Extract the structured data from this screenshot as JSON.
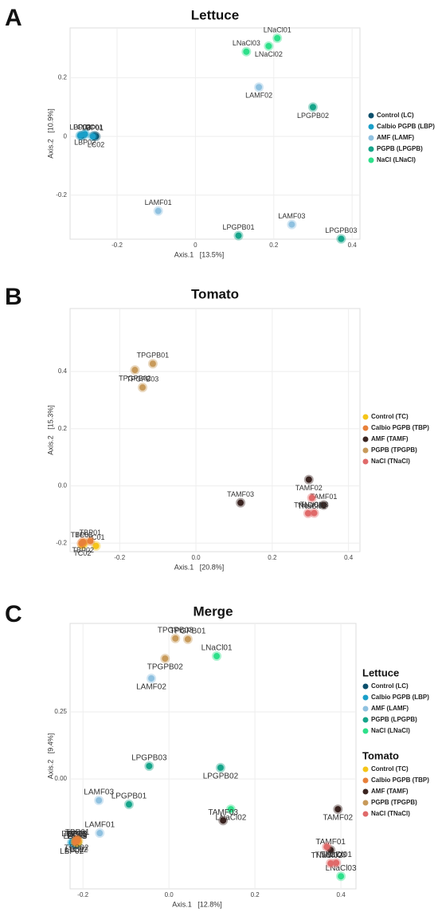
{
  "chart_data": [
    {
      "type": "scatter",
      "letter": "A",
      "title": "Lettuce",
      "xlabel": "Axis.1   [13.5%]",
      "ylabel": "Axis.2   [10.9%]",
      "xlim": [
        -0.32,
        0.42
      ],
      "ylim": [
        -0.35,
        0.37
      ],
      "xticks": [
        -0.2,
        0,
        0.2,
        0.4
      ],
      "yticks": [
        0.2,
        0,
        -0.2
      ],
      "grid": true,
      "series": [
        {
          "name": "Control (LC)",
          "color": "#0b4f6c",
          "labels": [
            "LC01",
            "LC02",
            "LC03"
          ],
          "x": [
            -0.258,
            -0.254,
            -0.29
          ],
          "values": [
            0.003,
            0,
            0.003
          ]
        },
        {
          "name": "Calbio PGPB (LBP)",
          "color": "#1a9fc9",
          "labels": [
            "LBP01",
            "LBP02",
            "LBP03"
          ],
          "x": [
            -0.262,
            -0.282,
            -0.294
          ],
          "values": [
            0,
            0.008,
            0.003
          ]
        },
        {
          "name": "AMF (LAMF)",
          "color": "#8fc1e0",
          "labels": [
            "LAMF01",
            "LAMF02",
            "LAMF03"
          ],
          "x": [
            -0.095,
            0.162,
            0.246
          ],
          "values": [
            -0.254,
            0.168,
            -0.3
          ]
        },
        {
          "name": "PGPB (LPGPB)",
          "color": "#16a58a",
          "labels": [
            "LPGPB01",
            "LPGPB02",
            "LPGPB03"
          ],
          "x": [
            0.11,
            0.3,
            0.372
          ],
          "values": [
            -0.338,
            0.1,
            -0.349
          ]
        },
        {
          "name": "NaCl (LNaCl)",
          "color": "#2ee08a",
          "labels": [
            "LNaCl01",
            "LNaCl02",
            "LNaCl03"
          ],
          "x": [
            0.209,
            0.187,
            0.13
          ],
          "values": [
            0.335,
            0.308,
            0.289
          ]
        }
      ]
    },
    {
      "type": "scatter",
      "letter": "B",
      "title": "Tomato",
      "xlabel": "Axis.1   [20.8%]",
      "ylabel": "Axis.2   [15.3%]",
      "xlim": [
        -0.33,
        0.43
      ],
      "ylim": [
        -0.23,
        0.62
      ],
      "xticks": [
        -0.2,
        {
          "value": 0,
          "label": "0.0"
        },
        0.2,
        0.4
      ],
      "yticks": [
        0.4,
        0.2,
        {
          "value": 0,
          "label": "0.0"
        },
        -0.2
      ],
      "grid": true,
      "series": [
        {
          "name": "Control (TC)",
          "color": "#f5c518",
          "labels": [
            "TC01",
            "TC02",
            "TC03"
          ],
          "x": [
            -0.262,
            -0.298,
            -0.294
          ],
          "values": [
            -0.21,
            -0.207,
            -0.201
          ]
        },
        {
          "name": "Calbio PGPB (TBP)",
          "color": "#e8803a",
          "labels": [
            "TBP01",
            "TBP02",
            "TBP03"
          ],
          "x": [
            -0.277,
            -0.296,
            -0.3
          ],
          "values": [
            -0.193,
            -0.196,
            -0.201
          ]
        },
        {
          "name": "AMF (TAMF)",
          "color": "#3a2420",
          "labels": [
            "TAMF01",
            "TAMF02",
            "TAMF03"
          ],
          "x": [
            0.335,
            0.296,
            0.117
          ],
          "values": [
            -0.067,
            0.022,
            -0.059
          ]
        },
        {
          "name": "PGPB (TPGPB)",
          "color": "#c89a5a",
          "labels": [
            "TPGPB01",
            "TPGPB02",
            "TPGPB03"
          ],
          "x": [
            -0.113,
            -0.16,
            -0.14
          ],
          "values": [
            0.427,
            0.405,
            0.344
          ]
        },
        {
          "name": "NaCl (TNaCl)",
          "color": "#e06a6a",
          "labels": [
            "TNaCl01",
            "TNaCl02",
            "TNaCl03"
          ],
          "x": [
            0.294,
            0.304,
            0.31
          ],
          "values": [
            -0.096,
            -0.042,
            -0.095
          ]
        }
      ]
    },
    {
      "type": "scatter",
      "letter": "C",
      "title": "Merge",
      "xlabel": "Axis.1   [12.8%]",
      "ylabel": "Axis.2   [9.4%]",
      "xlim": [
        -0.23,
        0.435
      ],
      "ylim": [
        -0.41,
        0.58
      ],
      "xticks": [
        -0.2,
        {
          "value": 0,
          "label": "0.0"
        },
        0.2,
        0.4
      ],
      "yticks": [
        0.25,
        {
          "value": 0,
          "label": "0.00"
        }
      ],
      "grid": true,
      "groups": [
        {
          "name": "Lettuce",
          "series": [
            {
              "name": "Control (LC)",
              "color": "#0b4f6c",
              "labels": [
                "LC01",
                "LC02",
                "LC03"
              ],
              "x": [
                -0.213,
                -0.22,
                -0.215
              ],
              "values": [
                -0.238,
                -0.232,
                -0.244
              ]
            },
            {
              "name": "Calbio PGPB (LBP)",
              "color": "#1a9fc9",
              "labels": [
                "LBP01",
                "LBP02",
                "LBP03"
              ],
              "x": [
                -0.222,
                -0.226,
                -0.218
              ],
              "values": [
                -0.235,
                -0.238,
                -0.244
              ]
            },
            {
              "name": "AMF (LAMF)",
              "color": "#8fc1e0",
              "labels": [
                "LAMF01",
                "LAMF02",
                "LAMF03"
              ],
              "x": [
                -0.161,
                -0.041,
                -0.163
              ],
              "values": [
                -0.202,
                0.375,
                -0.08
              ]
            },
            {
              "name": "PGPB (LPGPB)",
              "color": "#16a58a",
              "labels": [
                "LPGPB01",
                "LPGPB02",
                "LPGPB03"
              ],
              "x": [
                -0.093,
                0.12,
                -0.046
              ],
              "values": [
                -0.095,
                0.042,
                0.048
              ]
            },
            {
              "name": "NaCl (LNaCl)",
              "color": "#2ee08a",
              "labels": [
                "LNaCl01",
                "LNaCl02",
                "LNaCl03"
              ],
              "x": [
                0.111,
                0.144,
                0.4
              ],
              "values": [
                0.458,
                -0.113,
                -0.363
              ]
            }
          ]
        },
        {
          "name": "Tomato",
          "series": [
            {
              "name": "Control (TC)",
              "color": "#f5c518",
              "labels": [
                "TC01",
                "TC02",
                "TC03"
              ],
              "x": [
                -0.217,
                -0.211,
                -0.213
              ],
              "values": [
                -0.235,
                -0.232,
                -0.238
              ]
            },
            {
              "name": "Calbio PGPB (TBP)",
              "color": "#e8803a",
              "labels": [
                "TBP01",
                "TBP02",
                "TBP03"
              ],
              "x": [
                -0.213,
                -0.215,
                -0.218
              ],
              "values": [
                -0.229,
                -0.226,
                -0.235
              ]
            },
            {
              "name": "AMF (TAMF)",
              "color": "#3a2420",
              "labels": [
                "TAMF01",
                "TAMF02",
                "TAMF03"
              ],
              "x": [
                0.376,
                0.393,
                0.126
              ],
              "values": [
                -0.265,
                -0.113,
                -0.155
              ]
            },
            {
              "name": "PGPB (TPGPB)",
              "color": "#c89a5a",
              "labels": [
                "TPGPB01",
                "TPGPB02",
                "TPGPB03"
              ],
              "x": [
                0.044,
                -0.009,
                0.015
              ],
              "values": [
                0.521,
                0.449,
                0.524
              ]
            },
            {
              "name": "NaCl (TNaCl)",
              "color": "#e06a6a",
              "labels": [
                "TNaCl01",
                "TNaCl02",
                "TNaCl03"
              ],
              "x": [
                0.389,
                0.367,
                0.376
              ],
              "values": [
                -0.313,
                -0.253,
                -0.315
              ]
            }
          ]
        }
      ]
    }
  ]
}
